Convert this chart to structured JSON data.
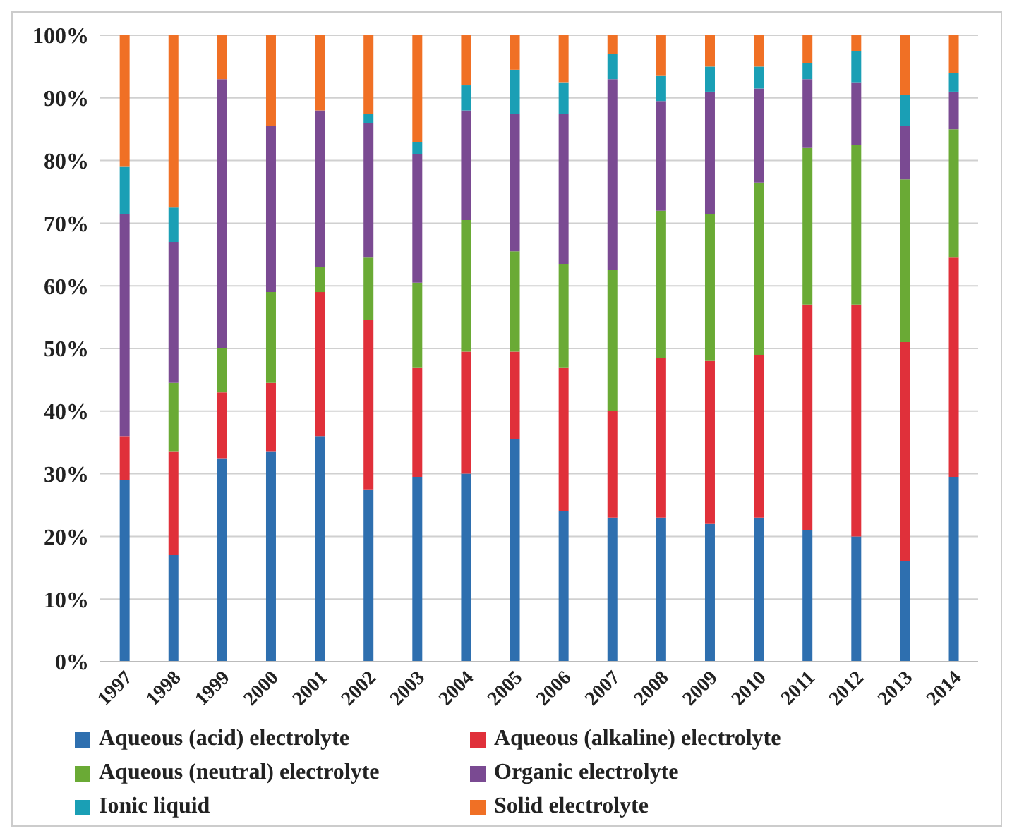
{
  "chart_data": {
    "type": "bar",
    "stacked": true,
    "categories": [
      "1997",
      "1998",
      "1999",
      "2000",
      "2001",
      "2002",
      "2003",
      "2004",
      "2005",
      "2006",
      "2007",
      "2008",
      "2009",
      "2010",
      "2011",
      "2012",
      "2013",
      "2014"
    ],
    "series": [
      {
        "name": "Aqueous (acid) electrolyte",
        "color": "#2e6faf",
        "values": [
          29,
          17,
          32.5,
          33.5,
          36,
          27.5,
          29.5,
          30,
          35.5,
          24,
          23,
          23,
          22,
          23,
          21,
          20,
          16,
          29.5
        ]
      },
      {
        "name": "Aqueous (alkaline) electrolyte",
        "color": "#e0303a",
        "values": [
          7,
          16.5,
          10.5,
          11,
          23,
          27,
          17.5,
          19.5,
          14,
          23,
          17,
          25.5,
          26,
          26,
          36,
          37,
          35,
          35
        ]
      },
      {
        "name": "Aqueous (neutral) electrolyte",
        "color": "#6aaa35",
        "values": [
          0,
          11,
          7,
          14.5,
          4,
          10,
          13.5,
          21,
          16,
          16.5,
          22.5,
          23.5,
          23.5,
          27.5,
          25,
          25.5,
          26,
          20.5
        ]
      },
      {
        "name": "Organic electrolyte",
        "color": "#7a4a92",
        "values": [
          35.5,
          22.5,
          43,
          26.5,
          25,
          21.5,
          20.5,
          17.5,
          22,
          24,
          30.5,
          17.5,
          19.5,
          15,
          11,
          10,
          8.5,
          6
        ]
      },
      {
        "name": "Ionic liquid",
        "color": "#1a9fb5",
        "values": [
          7.5,
          5.5,
          0,
          0,
          0,
          1.5,
          2,
          4,
          7,
          5,
          4,
          4,
          4,
          3.5,
          2.5,
          5,
          5,
          3
        ]
      },
      {
        "name": "Solid electrolyte",
        "color": "#f07025",
        "values": [
          21,
          27.5,
          7,
          14.5,
          12,
          12.5,
          17,
          8,
          5.5,
          7.5,
          3,
          6.5,
          5,
          5,
          4.5,
          2.5,
          9.5,
          6
        ]
      }
    ],
    "ylim": [
      0,
      100
    ],
    "yticks": [
      {
        "value": 0,
        "label": "0%"
      },
      {
        "value": 10,
        "label": "10%"
      },
      {
        "value": 20,
        "label": "20%"
      },
      {
        "value": 30,
        "label": "30%"
      },
      {
        "value": 40,
        "label": "40%"
      },
      {
        "value": 50,
        "label": "50%"
      },
      {
        "value": 60,
        "label": "60%"
      },
      {
        "value": 70,
        "label": "70%"
      },
      {
        "value": 80,
        "label": "80%"
      },
      {
        "value": 90,
        "label": "90%"
      },
      {
        "value": 100,
        "label": "100%"
      }
    ],
    "grid": "y",
    "legend": "bottom"
  }
}
